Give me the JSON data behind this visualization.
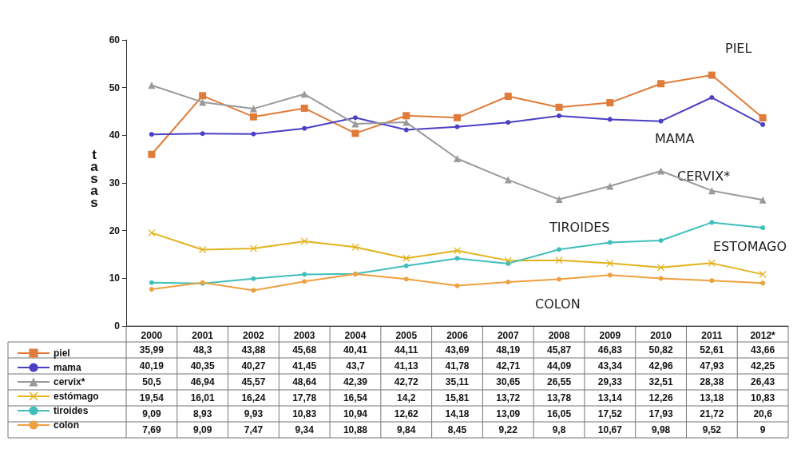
{
  "chart_data": {
    "type": "line",
    "ylabel": "tasas",
    "categories": [
      "2000",
      "2001",
      "2002",
      "2003",
      "2004",
      "2005",
      "2006",
      "2007",
      "2008",
      "2009",
      "2010",
      "2011",
      "2012*"
    ],
    "ylim": [
      0,
      60
    ],
    "yticks": [
      0,
      10,
      20,
      30,
      40,
      50,
      60
    ],
    "grid": false,
    "legend": "bottom left",
    "series": [
      {
        "name": "piel",
        "color": "#e07b39",
        "marker": "square",
        "values": [
          35.99,
          48.3,
          43.88,
          45.68,
          40.41,
          44.11,
          43.69,
          48.19,
          45.87,
          46.83,
          50.82,
          52.61,
          43.66
        ],
        "value_labels": [
          "35,99",
          "48,3",
          "43,88",
          "45,68",
          "40,41",
          "44,11",
          "43,69",
          "48,19",
          "45,87",
          "46,83",
          "50,82",
          "52,61",
          "43,66"
        ]
      },
      {
        "name": "mama",
        "color": "#4b3fc4",
        "marker": "circle",
        "values": [
          40.19,
          40.35,
          40.27,
          41.45,
          43.7,
          41.13,
          41.78,
          42.71,
          44.09,
          43.34,
          42.96,
          47.93,
          42.25
        ],
        "value_labels": [
          "40,19",
          "40,35",
          "40,27",
          "41,45",
          "43,7",
          "41,13",
          "41,78",
          "42,71",
          "44,09",
          "43,34",
          "42,96",
          "47,93",
          "42,25"
        ]
      },
      {
        "name": "cervix*",
        "color": "#9a9a9a",
        "marker": "triangle",
        "values": [
          50.5,
          46.94,
          45.57,
          48.64,
          42.39,
          42.72,
          35.11,
          30.65,
          26.55,
          29.33,
          32.51,
          28.38,
          26.43
        ],
        "value_labels": [
          "50,5",
          "46,94",
          "45,57",
          "48,64",
          "42,39",
          "42,72",
          "35,11",
          "30,65",
          "26,55",
          "29,33",
          "32,51",
          "28,38",
          "26,43"
        ]
      },
      {
        "name": "estómago",
        "color": "#e3b21c",
        "marker": "cross",
        "values": [
          19.54,
          16.01,
          16.24,
          17.78,
          16.54,
          14.2,
          15.81,
          13.72,
          13.78,
          13.14,
          12.26,
          13.18,
          10.83
        ],
        "value_labels": [
          "19,54",
          "16,01",
          "16,24",
          "17,78",
          "16,54",
          "14,2",
          "15,81",
          "13,72",
          "13,78",
          "13,14",
          "12,26",
          "13,18",
          "10,83"
        ]
      },
      {
        "name": "tiroides",
        "color": "#3fbfbb",
        "marker": "circle",
        "values": [
          9.09,
          8.93,
          9.93,
          10.83,
          10.94,
          12.62,
          14.18,
          13.09,
          16.05,
          17.52,
          17.93,
          21.72,
          20.6
        ],
        "value_labels": [
          "9,09",
          "8,93",
          "9,93",
          "10,83",
          "10,94",
          "12,62",
          "14,18",
          "13,09",
          "16,05",
          "17,52",
          "17,93",
          "21,72",
          "20,6"
        ]
      },
      {
        "name": "colon",
        "color": "#eea040",
        "marker": "circle",
        "values": [
          7.69,
          9.09,
          7.47,
          9.34,
          10.88,
          9.84,
          8.45,
          9.22,
          9.8,
          10.67,
          9.98,
          9.52,
          9
        ],
        "value_labels": [
          "7,69",
          "9,09",
          "7,47",
          "9,34",
          "10,88",
          "9,84",
          "8,45",
          "9,22",
          "9,8",
          "10,67",
          "9,98",
          "9,52",
          "9"
        ]
      }
    ],
    "annotations": [
      "PIEL",
      "MAMA",
      "CERVIX*",
      "TIROIDES",
      "ESTOMAGO",
      "COLON"
    ]
  }
}
